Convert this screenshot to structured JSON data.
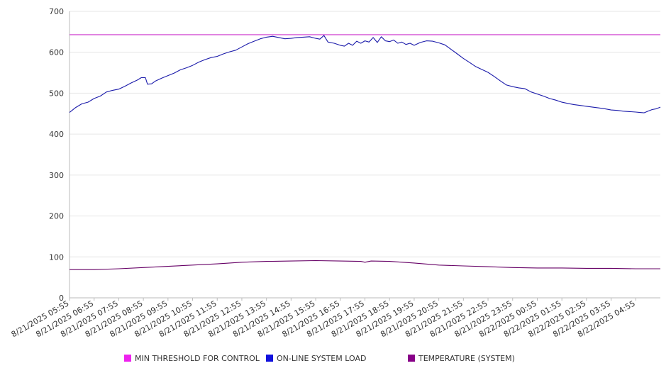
{
  "chart_data": {
    "type": "line",
    "title": "",
    "xlabel": "",
    "ylabel": "",
    "ylim": [
      0,
      700
    ],
    "yticks": [
      0,
      100,
      200,
      300,
      400,
      500,
      600,
      700
    ],
    "grid": true,
    "legend_position": "bottom",
    "x": [
      "8/21/2025 05:55",
      "8/21/2025 06:55",
      "8/21/2025 07:55",
      "8/21/2025 08:55",
      "8/21/2025 09:55",
      "8/21/2025 10:55",
      "8/21/2025 11:55",
      "8/21/2025 12:55",
      "8/21/2025 13:55",
      "8/21/2025 14:55",
      "8/21/2025 15:55",
      "8/21/2025 16:55",
      "8/21/2025 17:55",
      "8/21/2025 18:55",
      "8/21/2025 19:55",
      "8/21/2025 20:55",
      "8/21/2025 21:55",
      "8/21/2025 22:55",
      "8/21/2025 23:55",
      "8/22/2025 00:55",
      "8/22/2025 01:55",
      "8/22/2025 02:55",
      "8/22/2025 03:55",
      "8/22/2025 04:55"
    ],
    "x_end": "8/22/2025 05:55",
    "series": [
      {
        "name": "MIN THRESHOLD FOR CONTROL",
        "color": "#cc33cc",
        "legend_color": "#ee22ee",
        "points": [
          [
            "8/21/2025 05:55",
            643
          ],
          [
            "8/22/2025 05:55",
            643
          ]
        ]
      },
      {
        "name": "ON-LINE SYSTEM LOAD",
        "color": "#1a1aaa",
        "legend_color": "#1111dd",
        "points": [
          [
            "8/21/2025 05:55",
            453
          ],
          [
            "8/21/2025 06:10",
            465
          ],
          [
            "8/21/2025 06:25",
            474
          ],
          [
            "8/21/2025 06:40",
            478
          ],
          [
            "8/21/2025 06:55",
            487
          ],
          [
            "8/21/2025 07:10",
            493
          ],
          [
            "8/21/2025 07:25",
            503
          ],
          [
            "8/21/2025 07:40",
            507
          ],
          [
            "8/21/2025 07:55",
            510
          ],
          [
            "8/21/2025 08:10",
            517
          ],
          [
            "8/21/2025 08:25",
            525
          ],
          [
            "8/21/2025 08:40",
            532
          ],
          [
            "8/21/2025 08:50",
            538
          ],
          [
            "8/21/2025 09:00",
            538
          ],
          [
            "8/21/2025 09:05",
            522
          ],
          [
            "8/21/2025 09:15",
            523
          ],
          [
            "8/21/2025 09:25",
            530
          ],
          [
            "8/21/2025 09:40",
            537
          ],
          [
            "8/21/2025 09:55",
            543
          ],
          [
            "8/21/2025 10:10",
            549
          ],
          [
            "8/21/2025 10:25",
            557
          ],
          [
            "8/21/2025 10:40",
            562
          ],
          [
            "8/21/2025 10:55",
            568
          ],
          [
            "8/21/2025 11:10",
            576
          ],
          [
            "8/21/2025 11:25",
            582
          ],
          [
            "8/21/2025 11:40",
            587
          ],
          [
            "8/21/2025 11:55",
            590
          ],
          [
            "8/21/2025 12:10",
            596
          ],
          [
            "8/21/2025 12:25",
            601
          ],
          [
            "8/21/2025 12:40",
            605
          ],
          [
            "8/21/2025 12:55",
            613
          ],
          [
            "8/21/2025 13:10",
            621
          ],
          [
            "8/21/2025 13:25",
            627
          ],
          [
            "8/21/2025 13:40",
            633
          ],
          [
            "8/21/2025 13:55",
            637
          ],
          [
            "8/21/2025 14:10",
            639
          ],
          [
            "8/21/2025 14:25",
            636
          ],
          [
            "8/21/2025 14:40",
            633
          ],
          [
            "8/21/2025 14:55",
            634
          ],
          [
            "8/21/2025 15:10",
            636
          ],
          [
            "8/21/2025 15:25",
            637
          ],
          [
            "8/21/2025 15:40",
            638
          ],
          [
            "8/21/2025 15:55",
            634
          ],
          [
            "8/21/2025 16:05",
            632
          ],
          [
            "8/21/2025 16:15",
            641
          ],
          [
            "8/21/2025 16:25",
            625
          ],
          [
            "8/21/2025 16:40",
            622
          ],
          [
            "8/21/2025 16:55",
            617
          ],
          [
            "8/21/2025 17:05",
            615
          ],
          [
            "8/21/2025 17:15",
            622
          ],
          [
            "8/21/2025 17:25",
            617
          ],
          [
            "8/21/2025 17:35",
            627
          ],
          [
            "8/21/2025 17:45",
            622
          ],
          [
            "8/21/2025 17:55",
            628
          ],
          [
            "8/21/2025 18:05",
            625
          ],
          [
            "8/21/2025 18:15",
            636
          ],
          [
            "8/21/2025 18:25",
            624
          ],
          [
            "8/21/2025 18:35",
            638
          ],
          [
            "8/21/2025 18:45",
            628
          ],
          [
            "8/21/2025 18:55",
            626
          ],
          [
            "8/21/2025 19:05",
            630
          ],
          [
            "8/21/2025 19:15",
            622
          ],
          [
            "8/21/2025 19:25",
            625
          ],
          [
            "8/21/2025 19:35",
            619
          ],
          [
            "8/21/2025 19:45",
            622
          ],
          [
            "8/21/2025 19:55",
            617
          ],
          [
            "8/21/2025 20:10",
            624
          ],
          [
            "8/21/2025 20:25",
            628
          ],
          [
            "8/21/2025 20:40",
            627
          ],
          [
            "8/21/2025 20:55",
            623
          ],
          [
            "8/21/2025 21:10",
            618
          ],
          [
            "8/21/2025 21:25",
            607
          ],
          [
            "8/21/2025 21:40",
            596
          ],
          [
            "8/21/2025 21:55",
            585
          ],
          [
            "8/21/2025 22:10",
            575
          ],
          [
            "8/21/2025 22:25",
            565
          ],
          [
            "8/21/2025 22:40",
            558
          ],
          [
            "8/21/2025 22:55",
            551
          ],
          [
            "8/21/2025 23:10",
            541
          ],
          [
            "8/21/2025 23:25",
            530
          ],
          [
            "8/21/2025 23:40",
            520
          ],
          [
            "8/21/2025 23:55",
            516
          ],
          [
            "8/22/2025 00:10",
            513
          ],
          [
            "8/22/2025 00:25",
            511
          ],
          [
            "8/22/2025 00:40",
            503
          ],
          [
            "8/22/2025 00:55",
            498
          ],
          [
            "8/22/2025 01:10",
            493
          ],
          [
            "8/22/2025 01:25",
            487
          ],
          [
            "8/22/2025 01:40",
            483
          ],
          [
            "8/22/2025 01:55",
            478
          ],
          [
            "8/22/2025 02:10",
            475
          ],
          [
            "8/22/2025 02:25",
            472
          ],
          [
            "8/22/2025 02:40",
            470
          ],
          [
            "8/22/2025 02:55",
            468
          ],
          [
            "8/22/2025 03:10",
            466
          ],
          [
            "8/22/2025 03:25",
            464
          ],
          [
            "8/22/2025 03:40",
            462
          ],
          [
            "8/22/2025 03:55",
            459
          ],
          [
            "8/22/2025 04:10",
            458
          ],
          [
            "8/22/2025 04:25",
            456
          ],
          [
            "8/22/2025 04:40",
            455
          ],
          [
            "8/22/2025 04:55",
            454
          ],
          [
            "8/22/2025 05:05",
            453
          ],
          [
            "8/22/2025 05:15",
            452
          ],
          [
            "8/22/2025 05:25",
            456
          ],
          [
            "8/22/2025 05:35",
            460
          ],
          [
            "8/22/2025 05:45",
            462
          ],
          [
            "8/22/2025 05:55",
            466
          ]
        ]
      },
      {
        "name": "TEMPERATURE (SYSTEM)",
        "color": "#660066",
        "legend_color": "#880088",
        "points": [
          [
            "8/21/2025 05:55",
            69
          ],
          [
            "8/21/2025 06:55",
            69
          ],
          [
            "8/21/2025 07:55",
            71
          ],
          [
            "8/21/2025 08:55",
            74
          ],
          [
            "8/21/2025 09:55",
            77
          ],
          [
            "8/21/2025 10:55",
            80
          ],
          [
            "8/21/2025 11:55",
            83
          ],
          [
            "8/21/2025 12:55",
            87
          ],
          [
            "8/21/2025 13:55",
            89
          ],
          [
            "8/21/2025 14:55",
            90
          ],
          [
            "8/21/2025 15:55",
            91
          ],
          [
            "8/21/2025 16:55",
            90
          ],
          [
            "8/21/2025 17:45",
            89
          ],
          [
            "8/21/2025 17:55",
            87
          ],
          [
            "8/21/2025 18:10",
            90
          ],
          [
            "8/21/2025 18:55",
            89
          ],
          [
            "8/21/2025 19:55",
            85
          ],
          [
            "8/21/2025 20:55",
            80
          ],
          [
            "8/21/2025 21:55",
            78
          ],
          [
            "8/21/2025 22:55",
            76
          ],
          [
            "8/21/2025 23:55",
            74
          ],
          [
            "8/22/2025 00:55",
            73
          ],
          [
            "8/22/2025 01:55",
            73
          ],
          [
            "8/22/2025 02:55",
            72
          ],
          [
            "8/22/2025 03:55",
            72
          ],
          [
            "8/22/2025 04:55",
            71
          ],
          [
            "8/22/2025 05:55",
            71
          ]
        ]
      }
    ]
  }
}
